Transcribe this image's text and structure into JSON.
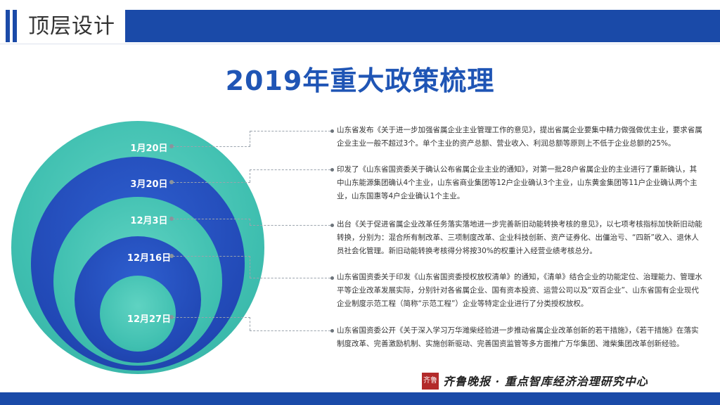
{
  "header": {
    "title": "顶层设计"
  },
  "main_title": "2019年重大政策梳理",
  "timeline": [
    {
      "date": "1月20日",
      "text": "山东省发布《关于进一步加强省属企业主业管理工作的意见》，提出省属企业要集中精力做强做优主业，要求省属企业主业一般不超过3个。单个主业的资产总额、营业收入、利润总额等原则上不低于企业总额的25%。"
    },
    {
      "date": "3月20日",
      "text": "印发了《山东省国资委关于确认公布省属企业主业的通知》，对第一批28户省属企业的主业进行了重新确认，其中山东能源集团确认4个主业，山东省商业集团等12户企业确认3个主业，山东黄金集团等11户企业确认两个主业，山东国惠等4户企业确认1个主业。"
    },
    {
      "date": "12月3日",
      "text": "出台《关于促进省属企业改革任务落实落地进一步完善新旧动能转换考核的意见》，以七项考核指标加快新旧动能转换，分别为：混合所有制改革、三项制度改革、企业科技创新、资产证券化、出僵治亏、“四新”收入、退休人员社会化管理。新旧动能转换考核得分将按30%的权重计入经营业绩考核总分。"
    },
    {
      "date": "12月16日",
      "text": "山东省国资委关于印发《山东省国资委授权放权清单》的通知，《清单》结合企业的功能定位、治理能力、管理水平等企业改革发展实际，分别针对各省属企业、国有资本投资、运营公司以及“双百企业”、山东省国有企业现代企业制度示范工程（简称“示范工程”）企业等特定企业进行了分类授权放权。"
    },
    {
      "date": "12月27日",
      "text": "山东省国资委公开《关于深入学习万华潍柴经验进一步推动省属企业改革创新的若干措施》，《若干措施》在落实制度改革、完善激励机制、实施创新驱动、完善国资监管等多方面推广万华集团、潍柴集团改革创新经验。"
    }
  ],
  "footer": {
    "seal_text": "齐鲁",
    "brand": "齐鲁晚报 · 重点智库经济治理研究中心"
  },
  "colors": {
    "primary_blue": "#1a4aa8",
    "title_blue": "#1f55b5",
    "teal": "#3fbfb0",
    "circle_blue": "#2148b5"
  }
}
